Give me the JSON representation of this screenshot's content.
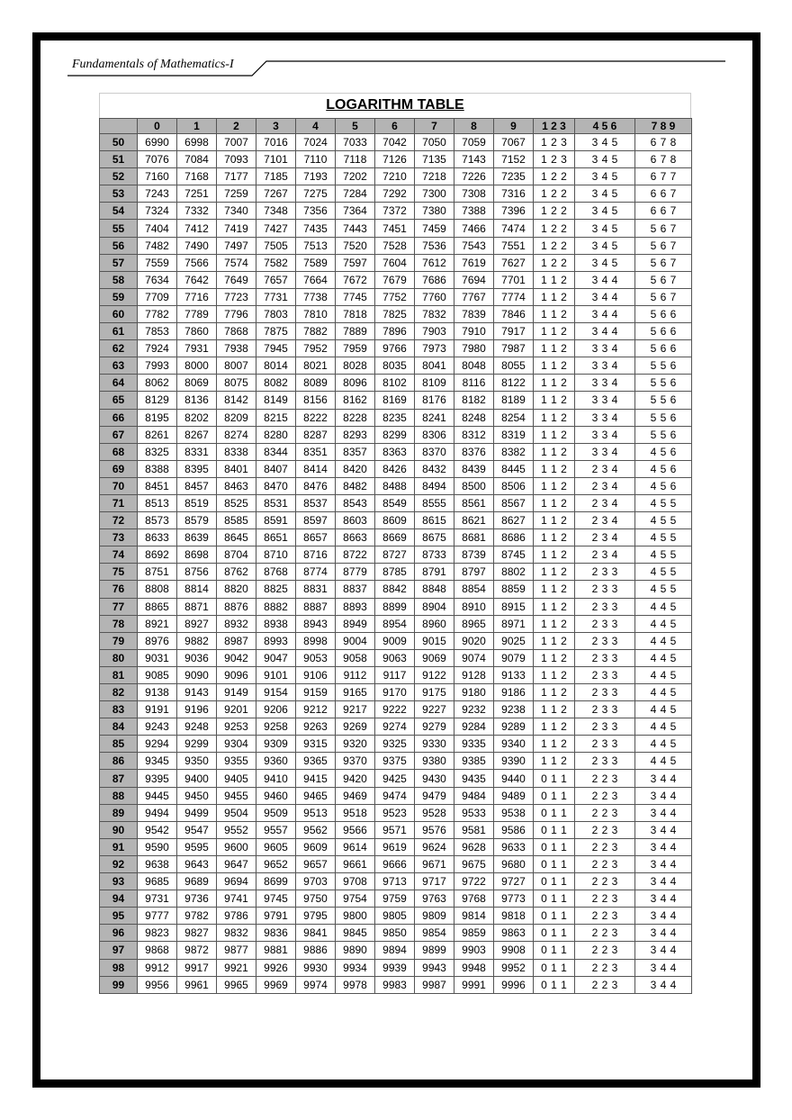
{
  "header": {
    "title": "Fundamentals of Mathematics-I"
  },
  "table": {
    "title": "LOGARITHM TABLE",
    "columns": [
      "0",
      "1",
      "2",
      "3",
      "4",
      "5",
      "6",
      "7",
      "8",
      "9",
      "1 2 3",
      "4 5 6",
      "7 8 9"
    ],
    "rows": [
      [
        50,
        6990,
        6998,
        7007,
        7016,
        7024,
        7033,
        7042,
        7050,
        7059,
        7067,
        "1 2 3",
        "3 4 5",
        "6 7 8"
      ],
      [
        51,
        7076,
        7084,
        7093,
        7101,
        7110,
        7118,
        7126,
        7135,
        7143,
        7152,
        "1 2 3",
        "3 4 5",
        "6 7 8"
      ],
      [
        52,
        7160,
        7168,
        7177,
        7185,
        7193,
        7202,
        7210,
        7218,
        7226,
        7235,
        "1 2 2",
        "3 4 5",
        "6 7 7"
      ],
      [
        53,
        7243,
        7251,
        7259,
        7267,
        7275,
        7284,
        7292,
        7300,
        7308,
        7316,
        "1 2 2",
        "3 4 5",
        "6 6 7"
      ],
      [
        54,
        7324,
        7332,
        7340,
        7348,
        7356,
        7364,
        7372,
        7380,
        7388,
        7396,
        "1 2 2",
        "3 4 5",
        "6 6 7"
      ],
      [
        55,
        7404,
        7412,
        7419,
        7427,
        7435,
        7443,
        7451,
        7459,
        7466,
        7474,
        "1 2 2",
        "3 4 5",
        "5 6 7"
      ],
      [
        56,
        7482,
        7490,
        7497,
        7505,
        7513,
        7520,
        7528,
        7536,
        7543,
        7551,
        "1 2 2",
        "3 4 5",
        "5 6 7"
      ],
      [
        57,
        7559,
        7566,
        7574,
        7582,
        7589,
        7597,
        7604,
        7612,
        7619,
        7627,
        "1 2 2",
        "3 4 5",
        "5 6 7"
      ],
      [
        58,
        7634,
        7642,
        7649,
        7657,
        7664,
        7672,
        7679,
        7686,
        7694,
        7701,
        "1 1 2",
        "3 4 4",
        "5 6 7"
      ],
      [
        59,
        7709,
        7716,
        7723,
        7731,
        7738,
        7745,
        7752,
        7760,
        7767,
        7774,
        "1 1 2",
        "3 4 4",
        "5 6 7"
      ],
      [
        60,
        7782,
        7789,
        7796,
        7803,
        7810,
        7818,
        7825,
        7832,
        7839,
        7846,
        "1 1 2",
        "3 4 4",
        "5 6 6"
      ],
      [
        61,
        7853,
        7860,
        7868,
        7875,
        7882,
        7889,
        7896,
        7903,
        7910,
        7917,
        "1 1 2",
        "3 4 4",
        "5 6 6"
      ],
      [
        62,
        7924,
        7931,
        7938,
        7945,
        7952,
        7959,
        9766,
        7973,
        7980,
        7987,
        "1 1 2",
        "3 3 4",
        "5 6 6"
      ],
      [
        63,
        7993,
        8000,
        8007,
        8014,
        8021,
        8028,
        8035,
        8041,
        8048,
        8055,
        "1 1 2",
        "3 3 4",
        "5 5 6"
      ],
      [
        64,
        8062,
        8069,
        8075,
        8082,
        8089,
        8096,
        8102,
        8109,
        8116,
        8122,
        "1 1 2",
        "3 3 4",
        "5 5 6"
      ],
      [
        65,
        8129,
        8136,
        8142,
        8149,
        8156,
        8162,
        8169,
        8176,
        8182,
        8189,
        "1 1 2",
        "3 3 4",
        "5 5 6"
      ],
      [
        66,
        8195,
        8202,
        8209,
        8215,
        8222,
        8228,
        8235,
        8241,
        8248,
        8254,
        "1 1 2",
        "3 3 4",
        "5 5 6"
      ],
      [
        67,
        8261,
        8267,
        8274,
        8280,
        8287,
        8293,
        8299,
        8306,
        8312,
        8319,
        "1 1 2",
        "3 3 4",
        "5 5 6"
      ],
      [
        68,
        8325,
        8331,
        8338,
        8344,
        8351,
        8357,
        8363,
        8370,
        8376,
        8382,
        "1 1 2",
        "3 3 4",
        "4 5 6"
      ],
      [
        69,
        8388,
        8395,
        8401,
        8407,
        8414,
        8420,
        8426,
        8432,
        8439,
        8445,
        "1 1 2",
        "2 3 4",
        "4 5 6"
      ],
      [
        70,
        8451,
        8457,
        8463,
        8470,
        8476,
        8482,
        8488,
        8494,
        8500,
        8506,
        "1 1 2",
        "2 3 4",
        "4 5 6"
      ],
      [
        71,
        8513,
        8519,
        8525,
        8531,
        8537,
        8543,
        8549,
        8555,
        8561,
        8567,
        "1 1 2",
        "2 3 4",
        "4 5 5"
      ],
      [
        72,
        8573,
        8579,
        8585,
        8591,
        8597,
        8603,
        8609,
        8615,
        8621,
        8627,
        "1 1 2",
        "2 3 4",
        "4 5 5"
      ],
      [
        73,
        8633,
        8639,
        8645,
        8651,
        8657,
        8663,
        8669,
        8675,
        8681,
        8686,
        "1 1 2",
        "2 3 4",
        "4 5 5"
      ],
      [
        74,
        8692,
        8698,
        8704,
        8710,
        8716,
        8722,
        8727,
        8733,
        8739,
        8745,
        "1 1 2",
        "2 3 4",
        "4 5 5"
      ],
      [
        75,
        8751,
        8756,
        8762,
        8768,
        8774,
        8779,
        8785,
        8791,
        8797,
        8802,
        "1 1 2",
        "2 3 3",
        "4 5 5"
      ],
      [
        76,
        8808,
        8814,
        8820,
        8825,
        8831,
        8837,
        8842,
        8848,
        8854,
        8859,
        "1 1 2",
        "2 3 3",
        "4 5 5"
      ],
      [
        77,
        8865,
        8871,
        8876,
        8882,
        8887,
        8893,
        8899,
        8904,
        8910,
        8915,
        "1 1 2",
        "2 3 3",
        "4 4 5"
      ],
      [
        78,
        8921,
        8927,
        8932,
        8938,
        8943,
        8949,
        8954,
        8960,
        8965,
        8971,
        "1 1 2",
        "2 3 3",
        "4 4 5"
      ],
      [
        79,
        8976,
        9882,
        8987,
        8993,
        8998,
        9004,
        9009,
        9015,
        9020,
        9025,
        "1 1 2",
        "2 3 3",
        "4 4 5"
      ],
      [
        80,
        9031,
        9036,
        9042,
        9047,
        9053,
        9058,
        9063,
        9069,
        9074,
        9079,
        "1 1 2",
        "2 3 3",
        "4 4 5"
      ],
      [
        81,
        9085,
        9090,
        9096,
        9101,
        9106,
        9112,
        9117,
        9122,
        9128,
        9133,
        "1 1 2",
        "2 3 3",
        "4 4 5"
      ],
      [
        82,
        9138,
        9143,
        9149,
        9154,
        9159,
        9165,
        9170,
        9175,
        9180,
        9186,
        "1 1 2",
        "2 3 3",
        "4 4 5"
      ],
      [
        83,
        9191,
        9196,
        9201,
        9206,
        9212,
        9217,
        9222,
        9227,
        9232,
        9238,
        "1 1 2",
        "2 3 3",
        "4 4 5"
      ],
      [
        84,
        9243,
        9248,
        9253,
        9258,
        9263,
        9269,
        9274,
        9279,
        9284,
        9289,
        "1 1 2",
        "2 3 3",
        "4 4 5"
      ],
      [
        85,
        9294,
        9299,
        9304,
        9309,
        9315,
        9320,
        9325,
        9330,
        9335,
        9340,
        "1 1 2",
        "2 3 3",
        "4 4 5"
      ],
      [
        86,
        9345,
        9350,
        9355,
        9360,
        9365,
        9370,
        9375,
        9380,
        9385,
        9390,
        "1 1 2",
        "2 3 3",
        "4 4 5"
      ],
      [
        87,
        9395,
        9400,
        9405,
        9410,
        9415,
        9420,
        9425,
        9430,
        9435,
        9440,
        "0 1 1",
        "2 2 3",
        "3 4 4"
      ],
      [
        88,
        9445,
        9450,
        9455,
        9460,
        9465,
        9469,
        9474,
        9479,
        9484,
        9489,
        "0 1 1",
        "2 2 3",
        "3 4 4"
      ],
      [
        89,
        9494,
        9499,
        9504,
        9509,
        9513,
        9518,
        9523,
        9528,
        9533,
        9538,
        "0 1 1",
        "2 2 3",
        "3 4 4"
      ],
      [
        90,
        9542,
        9547,
        9552,
        9557,
        9562,
        9566,
        9571,
        9576,
        9581,
        9586,
        "0 1 1",
        "2 2 3",
        "3 4 4"
      ],
      [
        91,
        9590,
        9595,
        9600,
        9605,
        9609,
        9614,
        9619,
        9624,
        9628,
        9633,
        "0 1 1",
        "2 2 3",
        "3 4 4"
      ],
      [
        92,
        9638,
        9643,
        9647,
        9652,
        9657,
        9661,
        9666,
        9671,
        9675,
        9680,
        "0 1 1",
        "2 2 3",
        "3 4 4"
      ],
      [
        93,
        9685,
        9689,
        9694,
        8699,
        9703,
        9708,
        9713,
        9717,
        9722,
        9727,
        "0 1 1",
        "2 2 3",
        "3 4 4"
      ],
      [
        94,
        9731,
        9736,
        9741,
        9745,
        9750,
        9754,
        9759,
        9763,
        9768,
        9773,
        "0 1 1",
        "2 2 3",
        "3 4 4"
      ],
      [
        95,
        9777,
        9782,
        9786,
        9791,
        9795,
        9800,
        9805,
        9809,
        9814,
        9818,
        "0 1 1",
        "2 2 3",
        "3 4 4"
      ],
      [
        96,
        9823,
        9827,
        9832,
        9836,
        9841,
        9845,
        9850,
        9854,
        9859,
        9863,
        "0 1 1",
        "2 2 3",
        "3 4 4"
      ],
      [
        97,
        9868,
        9872,
        9877,
        9881,
        9886,
        9890,
        9894,
        9899,
        9903,
        9908,
        "0 1 1",
        "2 2 3",
        "3 4 4"
      ],
      [
        98,
        9912,
        9917,
        9921,
        9926,
        9930,
        9934,
        9939,
        9943,
        9948,
        9952,
        "0 1 1",
        "2 2 3",
        "3 4 4"
      ],
      [
        99,
        9956,
        9961,
        9965,
        9969,
        9974,
        9978,
        9983,
        9987,
        9991,
        9996,
        "0 1 1",
        "2 2 3",
        "3 4 4"
      ]
    ]
  }
}
